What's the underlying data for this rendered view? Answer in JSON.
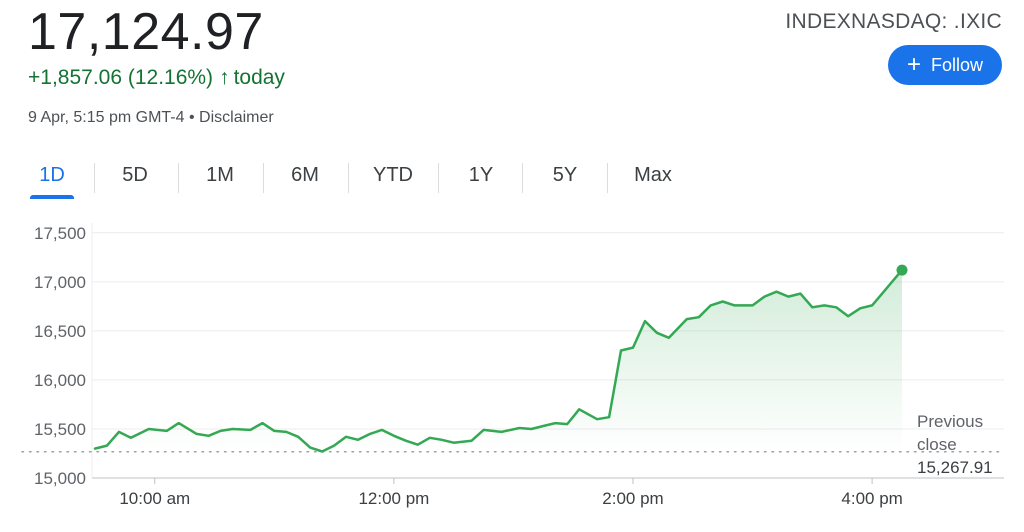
{
  "quote": {
    "price": "17,124.97",
    "change": "+1,857.06 (12.16%)",
    "period": "today",
    "timestamp": "9 Apr, 5:15 pm GMT-4",
    "separator": "•",
    "disclaimer": "Disclaimer",
    "ticker": "INDEXNASDAQ: .IXIC"
  },
  "follow_button": {
    "label": "Follow"
  },
  "tabs": [
    {
      "label": "1D",
      "active": true
    },
    {
      "label": "5D",
      "active": false
    },
    {
      "label": "1M",
      "active": false
    },
    {
      "label": "6M",
      "active": false
    },
    {
      "label": "YTD",
      "active": false
    },
    {
      "label": "1Y",
      "active": false
    },
    {
      "label": "5Y",
      "active": false
    },
    {
      "label": "Max",
      "active": false
    }
  ],
  "colors": {
    "positive": "#137333",
    "line": "#34a853",
    "accent": "#1a73e8"
  },
  "chart_data": {
    "type": "line",
    "x_unit": "hours",
    "xlim": [
      9.5,
      16.25
    ],
    "x_ticks": [
      {
        "value": 10,
        "label": "10:00 am"
      },
      {
        "value": 12,
        "label": "12:00 pm"
      },
      {
        "value": 14,
        "label": "2:00 pm"
      },
      {
        "value": 16,
        "label": "4:00 pm"
      }
    ],
    "ylim": [
      15000,
      17600
    ],
    "y_ticks": [
      15000,
      15500,
      16000,
      16500,
      17000,
      17500
    ],
    "y_tick_labels": [
      "15,000",
      "15,500",
      "16,000",
      "16,500",
      "17,000",
      "17,500"
    ],
    "grid": true,
    "previous_close": {
      "value": 15267.91,
      "label_line1": "Previous",
      "label_line2": "close",
      "value_label": "15,267.91"
    },
    "series": [
      {
        "x": [
          9.5,
          9.6,
          9.7,
          9.8,
          9.95,
          10.1,
          10.2,
          10.35,
          10.45,
          10.55,
          10.65,
          10.8,
          10.9,
          11.0,
          11.1,
          11.2,
          11.3,
          11.4,
          11.5,
          11.6,
          11.7,
          11.8,
          11.9,
          12.0,
          12.1,
          12.2,
          12.3,
          12.4,
          12.5,
          12.65,
          12.75,
          12.9,
          13.05,
          13.15,
          13.25,
          13.35,
          13.45,
          13.55,
          13.7,
          13.8,
          13.9,
          14.0,
          14.1,
          14.2,
          14.3,
          14.45,
          14.55,
          14.65,
          14.75,
          14.85,
          15.0,
          15.1,
          15.2,
          15.3,
          15.4,
          15.5,
          15.6,
          15.7,
          15.8,
          15.9,
          16.0,
          16.25
        ],
        "y": [
          15300,
          15330,
          15470,
          15410,
          15500,
          15480,
          15560,
          15450,
          15430,
          15480,
          15500,
          15490,
          15560,
          15480,
          15470,
          15420,
          15310,
          15270,
          15330,
          15420,
          15390,
          15450,
          15490,
          15430,
          15380,
          15340,
          15410,
          15390,
          15360,
          15380,
          15490,
          15470,
          15510,
          15500,
          15530,
          15560,
          15550,
          15700,
          15600,
          15620,
          16300,
          16330,
          16600,
          16480,
          16430,
          16620,
          16640,
          16760,
          16800,
          16760,
          16760,
          16850,
          16900,
          16850,
          16880,
          16740,
          16760,
          16740,
          16650,
          16730,
          16760,
          17120
        ]
      }
    ]
  }
}
